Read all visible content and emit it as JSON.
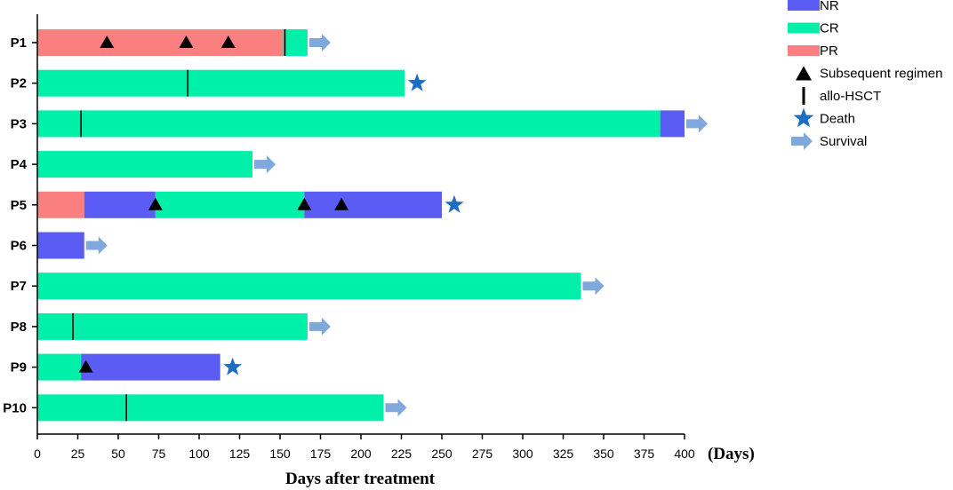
{
  "chart_data": {
    "type": "bar",
    "orientation": "horizontal-stacked-timeline",
    "xlabel": "Days after treatment",
    "x_unit": "(Days)",
    "xlim": [
      0,
      400
    ],
    "x_ticks": [
      0,
      25,
      50,
      75,
      100,
      125,
      150,
      175,
      200,
      225,
      250,
      275,
      300,
      325,
      350,
      375,
      400
    ],
    "grid": false,
    "legend_position": "top-right",
    "colors": {
      "NR": "#5b5cf4",
      "CR": "#00f0aa",
      "PR": "#fa8080",
      "survival": "#7fa8dc",
      "death": "#1f6dc0",
      "marker": "#000000"
    },
    "legend": [
      {
        "label": "NR",
        "kind": "NR"
      },
      {
        "label": "CR",
        "kind": "CR"
      },
      {
        "label": "PR",
        "kind": "PR"
      },
      {
        "label": "Subsequent regimen",
        "kind": "triangle"
      },
      {
        "label": "allo-HSCT",
        "kind": "line"
      },
      {
        "label": "Death",
        "kind": "star"
      },
      {
        "label": "Survival",
        "kind": "arrow"
      }
    ],
    "patients": [
      {
        "name": "P1",
        "segments": [
          {
            "status": "PR",
            "start": 0,
            "end": 152
          },
          {
            "status": "CR",
            "start": 152,
            "end": 167
          }
        ],
        "regimens": [
          43,
          92,
          118
        ],
        "hsct": [
          153
        ],
        "outcome": "Survival"
      },
      {
        "name": "P2",
        "segments": [
          {
            "status": "CR",
            "start": 0,
            "end": 227
          }
        ],
        "regimens": [],
        "hsct": [
          93
        ],
        "outcome": "Death"
      },
      {
        "name": "P3",
        "segments": [
          {
            "status": "CR",
            "start": 0,
            "end": 385
          },
          {
            "status": "NR",
            "start": 385,
            "end": 400
          }
        ],
        "regimens": [],
        "hsct": [
          27
        ],
        "outcome": "Survival"
      },
      {
        "name": "P4",
        "segments": [
          {
            "status": "CR",
            "start": 0,
            "end": 133
          }
        ],
        "regimens": [],
        "hsct": [],
        "outcome": "Survival"
      },
      {
        "name": "P5",
        "segments": [
          {
            "status": "PR",
            "start": 0,
            "end": 29
          },
          {
            "status": "NR",
            "start": 29,
            "end": 73
          },
          {
            "status": "CR",
            "start": 73,
            "end": 165
          },
          {
            "status": "NR",
            "start": 165,
            "end": 250
          }
        ],
        "regimens": [
          73,
          165,
          188
        ],
        "hsct": [],
        "outcome": "Death"
      },
      {
        "name": "P6",
        "segments": [
          {
            "status": "NR",
            "start": 0,
            "end": 29
          }
        ],
        "regimens": [],
        "hsct": [],
        "outcome": "Survival"
      },
      {
        "name": "P7",
        "segments": [
          {
            "status": "CR",
            "start": 0,
            "end": 336
          }
        ],
        "regimens": [],
        "hsct": [],
        "outcome": "Survival"
      },
      {
        "name": "P8",
        "segments": [
          {
            "status": "CR",
            "start": 0,
            "end": 167
          }
        ],
        "regimens": [],
        "hsct": [
          22
        ],
        "outcome": "Survival"
      },
      {
        "name": "P9",
        "segments": [
          {
            "status": "CR",
            "start": 0,
            "end": 27
          },
          {
            "status": "NR",
            "start": 27,
            "end": 113
          }
        ],
        "regimens": [
          30
        ],
        "hsct": [],
        "outcome": "Death"
      },
      {
        "name": "P10",
        "segments": [
          {
            "status": "CR",
            "start": 0,
            "end": 214
          }
        ],
        "regimens": [],
        "hsct": [
          55
        ],
        "outcome": "Survival"
      }
    ]
  }
}
